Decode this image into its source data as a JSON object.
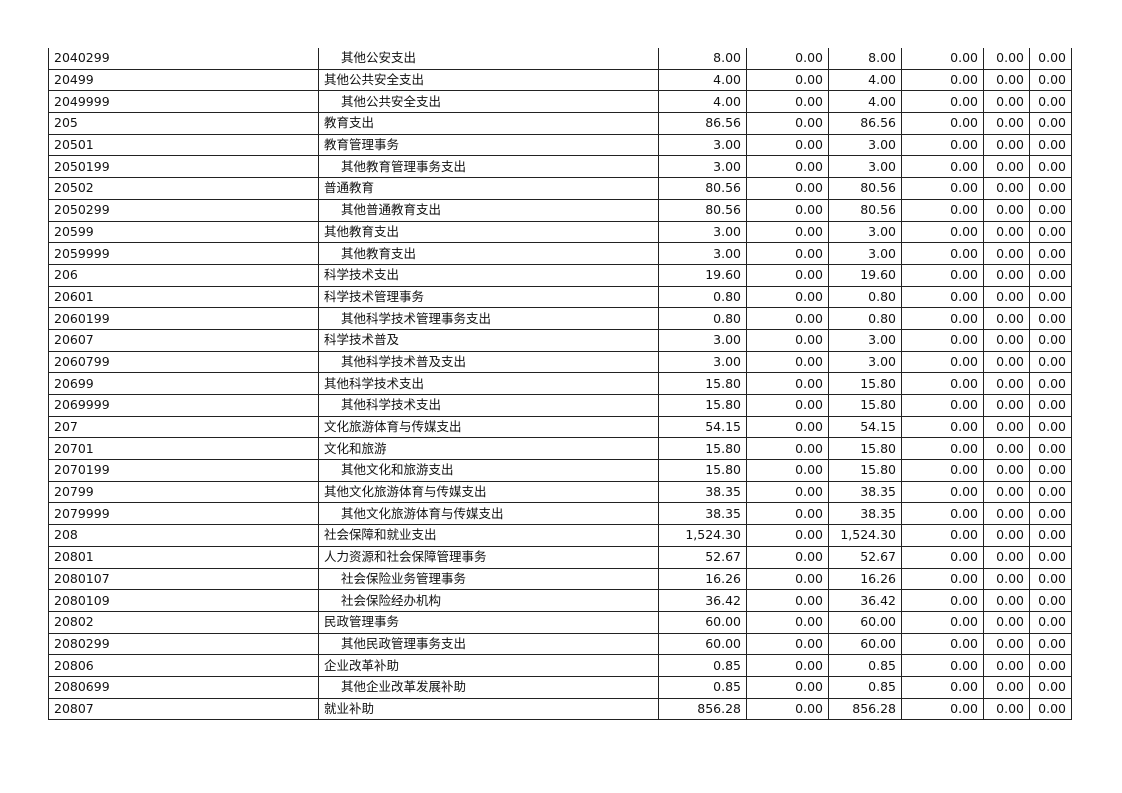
{
  "table": {
    "rows": [
      [
        "2040299",
        "其他公安支出",
        "8.00",
        "0.00",
        "8.00",
        "0.00",
        "0.00",
        "0.00"
      ],
      [
        "20499",
        "其他公共安全支出",
        "4.00",
        "0.00",
        "4.00",
        "0.00",
        "0.00",
        "0.00"
      ],
      [
        "2049999",
        "其他公共安全支出",
        "4.00",
        "0.00",
        "4.00",
        "0.00",
        "0.00",
        "0.00"
      ],
      [
        "205",
        "教育支出",
        "86.56",
        "0.00",
        "86.56",
        "0.00",
        "0.00",
        "0.00"
      ],
      [
        "20501",
        "教育管理事务",
        "3.00",
        "0.00",
        "3.00",
        "0.00",
        "0.00",
        "0.00"
      ],
      [
        "2050199",
        "其他教育管理事务支出",
        "3.00",
        "0.00",
        "3.00",
        "0.00",
        "0.00",
        "0.00"
      ],
      [
        "20502",
        "普通教育",
        "80.56",
        "0.00",
        "80.56",
        "0.00",
        "0.00",
        "0.00"
      ],
      [
        "2050299",
        "其他普通教育支出",
        "80.56",
        "0.00",
        "80.56",
        "0.00",
        "0.00",
        "0.00"
      ],
      [
        "20599",
        "其他教育支出",
        "3.00",
        "0.00",
        "3.00",
        "0.00",
        "0.00",
        "0.00"
      ],
      [
        "2059999",
        "其他教育支出",
        "3.00",
        "0.00",
        "3.00",
        "0.00",
        "0.00",
        "0.00"
      ],
      [
        "206",
        "科学技术支出",
        "19.60",
        "0.00",
        "19.60",
        "0.00",
        "0.00",
        "0.00"
      ],
      [
        "20601",
        "科学技术管理事务",
        "0.80",
        "0.00",
        "0.80",
        "0.00",
        "0.00",
        "0.00"
      ],
      [
        "2060199",
        "其他科学技术管理事务支出",
        "0.80",
        "0.00",
        "0.80",
        "0.00",
        "0.00",
        "0.00"
      ],
      [
        "20607",
        "科学技术普及",
        "3.00",
        "0.00",
        "3.00",
        "0.00",
        "0.00",
        "0.00"
      ],
      [
        "2060799",
        "其他科学技术普及支出",
        "3.00",
        "0.00",
        "3.00",
        "0.00",
        "0.00",
        "0.00"
      ],
      [
        "20699",
        "其他科学技术支出",
        "15.80",
        "0.00",
        "15.80",
        "0.00",
        "0.00",
        "0.00"
      ],
      [
        "2069999",
        "其他科学技术支出",
        "15.80",
        "0.00",
        "15.80",
        "0.00",
        "0.00",
        "0.00"
      ],
      [
        "207",
        "文化旅游体育与传媒支出",
        "54.15",
        "0.00",
        "54.15",
        "0.00",
        "0.00",
        "0.00"
      ],
      [
        "20701",
        "文化和旅游",
        "15.80",
        "0.00",
        "15.80",
        "0.00",
        "0.00",
        "0.00"
      ],
      [
        "2070199",
        "其他文化和旅游支出",
        "15.80",
        "0.00",
        "15.80",
        "0.00",
        "0.00",
        "0.00"
      ],
      [
        "20799",
        "其他文化旅游体育与传媒支出",
        "38.35",
        "0.00",
        "38.35",
        "0.00",
        "0.00",
        "0.00"
      ],
      [
        "2079999",
        "其他文化旅游体育与传媒支出",
        "38.35",
        "0.00",
        "38.35",
        "0.00",
        "0.00",
        "0.00"
      ],
      [
        "208",
        "社会保障和就业支出",
        "1,524.30",
        "0.00",
        "1,524.30",
        "0.00",
        "0.00",
        "0.00"
      ],
      [
        "20801",
        "人力资源和社会保障管理事务",
        "52.67",
        "0.00",
        "52.67",
        "0.00",
        "0.00",
        "0.00"
      ],
      [
        "2080107",
        "社会保险业务管理事务",
        "16.26",
        "0.00",
        "16.26",
        "0.00",
        "0.00",
        "0.00"
      ],
      [
        "2080109",
        "社会保险经办机构",
        "36.42",
        "0.00",
        "36.42",
        "0.00",
        "0.00",
        "0.00"
      ],
      [
        "20802",
        "民政管理事务",
        "60.00",
        "0.00",
        "60.00",
        "0.00",
        "0.00",
        "0.00"
      ],
      [
        "2080299",
        "其他民政管理事务支出",
        "60.00",
        "0.00",
        "60.00",
        "0.00",
        "0.00",
        "0.00"
      ],
      [
        "20806",
        "企业改革补助",
        "0.85",
        "0.00",
        "0.85",
        "0.00",
        "0.00",
        "0.00"
      ],
      [
        "2080699",
        "其他企业改革发展补助",
        "0.85",
        "0.00",
        "0.85",
        "0.00",
        "0.00",
        "0.00"
      ],
      [
        "20807",
        "就业补助",
        "856.28",
        "0.00",
        "856.28",
        "0.00",
        "0.00",
        "0.00"
      ]
    ]
  }
}
